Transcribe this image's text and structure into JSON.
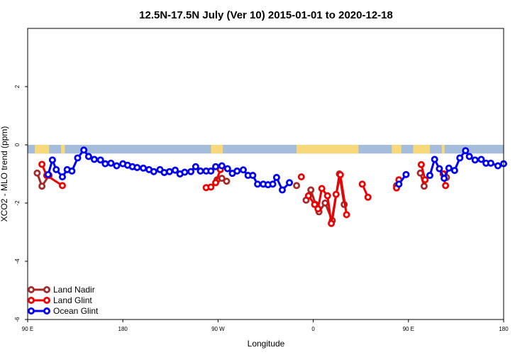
{
  "chart_data": {
    "type": "line",
    "title": "12.5N-17.5N July (Ver 10)   2015-01-01 to 2020-12-18",
    "xlabel": "Longitude",
    "ylabel": "XCO2 - MLO trend (ppm)",
    "xlim": [
      0,
      100
    ],
    "ylim": [
      -6,
      4
    ],
    "x_ticks": [
      {
        "pos": 0,
        "label": "90 E"
      },
      {
        "pos": 20,
        "label": "180"
      },
      {
        "pos": 40,
        "label": "90 W"
      },
      {
        "pos": 60,
        "label": "0"
      },
      {
        "pos": 80,
        "label": "90 E"
      },
      {
        "pos": 100,
        "label": "180"
      }
    ],
    "y_ticks": [
      {
        "value": 2,
        "label": "2"
      },
      {
        "value": 0,
        "label": "0"
      },
      {
        "value": -2,
        "label": "-2"
      },
      {
        "value": -4,
        "label": "-4"
      },
      {
        "value": -6,
        "label": "-6"
      }
    ],
    "map_strip": {
      "y_top": 0.0,
      "y_bottom": -0.3,
      "ocean_color": "#a5bddb",
      "land_color": "#f7d87a",
      "land_segments": [
        [
          1.5,
          4.5
        ],
        [
          7.0,
          7.8
        ],
        [
          38.5,
          41.0
        ],
        [
          56.5,
          69.5
        ],
        [
          76.5,
          78.5
        ],
        [
          81.0,
          84.5
        ],
        [
          87.0,
          87.6
        ]
      ]
    },
    "legend_position": "bottom-left",
    "series": [
      {
        "name": "Land Nadir",
        "color": "#a52a2a",
        "segments": [
          [
            [
              2.0,
              -0.97
            ],
            [
              3.0,
              -1.42
            ],
            [
              4.5,
              -1.05
            ]
          ],
          [
            [
              39.8,
              -1.2
            ],
            [
              40.8,
              -1.15
            ],
            [
              41.8,
              -1.25
            ]
          ],
          [
            [
              56.5,
              -1.4
            ]
          ],
          [
            [
              58.5,
              -1.9
            ],
            [
              59.5,
              -1.55
            ],
            [
              60.5,
              -2.05
            ],
            [
              61.2,
              -2.3
            ],
            [
              62.5,
              -2.0
            ],
            [
              64.0,
              -2.6
            ],
            [
              65.5,
              -1.0
            ],
            [
              66.5,
              -2.05
            ]
          ],
          [
            [
              77.5,
              -1.4
            ]
          ],
          [
            [
              82.5,
              -0.97
            ],
            [
              83.3,
              -1.42
            ]
          ],
          [
            [
              87.5,
              -1.0
            ],
            [
              88.0,
              -1.12
            ]
          ]
        ]
      },
      {
        "name": "Land Glint",
        "color": "#ee0000",
        "segments": [
          [
            [
              3.0,
              -0.67
            ],
            [
              4.0,
              -1.05
            ],
            [
              7.3,
              -1.4
            ]
          ],
          [
            [
              37.5,
              -1.47
            ],
            [
              38.5,
              -1.45
            ],
            [
              39.5,
              -1.3
            ],
            [
              40.5,
              -0.85
            ]
          ],
          [
            [
              57.5,
              -1.1
            ]
          ],
          [
            [
              59.0,
              -1.75
            ],
            [
              60.3,
              -2.05
            ],
            [
              61.0,
              -2.2
            ],
            [
              61.8,
              -1.5
            ],
            [
              63.0,
              -1.75
            ],
            [
              63.8,
              -2.7
            ],
            [
              64.8,
              -1.7
            ],
            [
              65.7,
              -1.03
            ],
            [
              67.0,
              -2.4
            ]
          ],
          [
            [
              70.3,
              -1.35
            ],
            [
              71.5,
              -1.8
            ]
          ],
          [
            [
              77.5,
              -1.48
            ],
            [
              78.0,
              -1.2
            ]
          ],
          [
            [
              82.7,
              -0.68
            ],
            [
              83.5,
              -1.2
            ]
          ],
          [
            [
              87.3,
              -1.0
            ],
            [
              87.8,
              -1.4
            ]
          ]
        ]
      },
      {
        "name": "Ocean Glint",
        "color": "#0000ee",
        "segments": [
          [
            [
              4.3,
              -1.02
            ],
            [
              5.2,
              -0.52
            ],
            [
              6.0,
              -0.85
            ],
            [
              7.3,
              -1.1
            ],
            [
              8.3,
              -0.85
            ],
            [
              9.3,
              -0.9
            ],
            [
              10.5,
              -0.45
            ],
            [
              11.8,
              -0.18
            ],
            [
              12.8,
              -0.4
            ],
            [
              14.0,
              -0.5
            ],
            [
              15.3,
              -0.52
            ],
            [
              16.3,
              -0.65
            ],
            [
              17.5,
              -0.63
            ],
            [
              18.7,
              -0.72
            ],
            [
              20.0,
              -0.65
            ],
            [
              21.0,
              -0.7
            ],
            [
              22.0,
              -0.75
            ],
            [
              23.0,
              -0.78
            ],
            [
              24.3,
              -0.8
            ],
            [
              25.5,
              -0.85
            ],
            [
              26.5,
              -0.92
            ],
            [
              27.8,
              -0.85
            ],
            [
              28.7,
              -0.95
            ],
            [
              29.8,
              -0.92
            ],
            [
              31.0,
              -0.87
            ],
            [
              32.0,
              -1.0
            ],
            [
              33.0,
              -0.94
            ],
            [
              34.3,
              -0.92
            ],
            [
              35.3,
              -0.75
            ],
            [
              36.3,
              -0.9
            ],
            [
              37.5,
              -0.9
            ],
            [
              38.5,
              -0.9
            ],
            [
              39.5,
              -0.75
            ],
            [
              40.8,
              -0.72
            ],
            [
              42.0,
              -0.82
            ],
            [
              43.0,
              -0.98
            ],
            [
              44.0,
              -0.9
            ],
            [
              45.3,
              -0.86
            ],
            [
              46.3,
              -1.05
            ],
            [
              47.3,
              -1.05
            ],
            [
              48.3,
              -1.35
            ],
            [
              49.5,
              -1.35
            ],
            [
              50.5,
              -1.37
            ],
            [
              51.5,
              -1.35
            ],
            [
              52.3,
              -1.12
            ],
            [
              53.5,
              -1.55
            ],
            [
              55.0,
              -1.3
            ]
          ],
          [
            [
              78.0,
              -1.35
            ],
            [
              79.5,
              -1.02
            ]
          ],
          [
            [
              84.5,
              -1.05
            ],
            [
              85.5,
              -0.5
            ],
            [
              86.5,
              -0.82
            ],
            [
              87.5,
              -1.15
            ],
            [
              88.5,
              -0.8
            ],
            [
              89.7,
              -0.88
            ],
            [
              90.8,
              -0.45
            ],
            [
              92.0,
              -0.2
            ],
            [
              92.8,
              -0.4
            ],
            [
              94.0,
              -0.52
            ],
            [
              95.3,
              -0.5
            ],
            [
              96.3,
              -0.63
            ],
            [
              97.3,
              -0.63
            ],
            [
              98.8,
              -0.72
            ],
            [
              100.0,
              -0.65
            ]
          ]
        ]
      }
    ]
  }
}
